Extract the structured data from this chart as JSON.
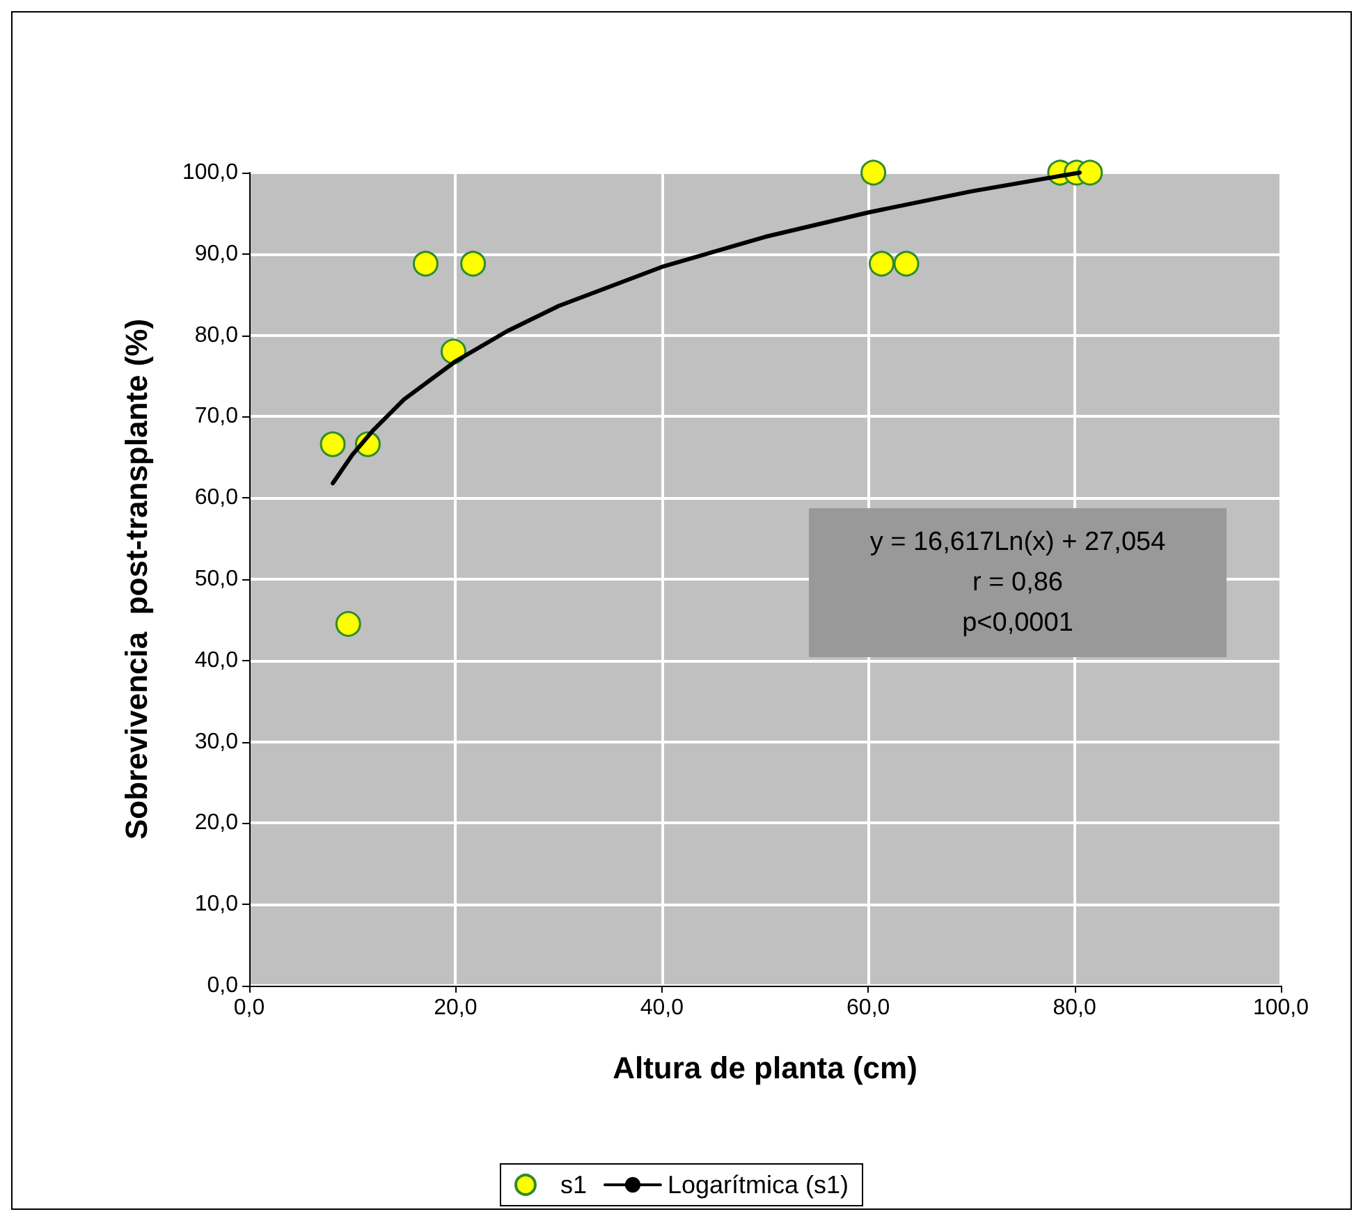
{
  "chart_data": {
    "type": "scatter",
    "xlabel": "Altura de planta (cm)",
    "ylabel": "Sobrevivencia  post-transplante (%)",
    "xlim": [
      0,
      100
    ],
    "ylim": [
      0,
      100
    ],
    "xticks": [
      {
        "value": 0,
        "label": "0,0"
      },
      {
        "value": 20,
        "label": "20,0"
      },
      {
        "value": 40,
        "label": "40,0"
      },
      {
        "value": 60,
        "label": "60,0"
      },
      {
        "value": 80,
        "label": "80,0"
      },
      {
        "value": 100,
        "label": "100,0"
      }
    ],
    "yticks": [
      {
        "value": 0,
        "label": "0,0"
      },
      {
        "value": 10,
        "label": "10,0"
      },
      {
        "value": 20,
        "label": "20,0"
      },
      {
        "value": 30,
        "label": "30,0"
      },
      {
        "value": 40,
        "label": "40,0"
      },
      {
        "value": 50,
        "label": "50,0"
      },
      {
        "value": 60,
        "label": "60,0"
      },
      {
        "value": 70,
        "label": "70,0"
      },
      {
        "value": 80,
        "label": "80,0"
      },
      {
        "value": 90,
        "label": "90,0"
      },
      {
        "value": 100,
        "label": "100,0"
      }
    ],
    "grid": true,
    "legend": "bottom",
    "marker": "circle",
    "annotations": [
      "y = 16,617Ln(x) + 27,054",
      "r = 0,86",
      "p<0,0001"
    ],
    "series": [
      {
        "name": "s1",
        "color": "#ffff00",
        "x": [
          8.1,
          9.6,
          11.5,
          17.1,
          19.8,
          21.7,
          60.5,
          61.3,
          63.7,
          78.6,
          80.2,
          81.5
        ],
        "values": [
          66.6,
          44.5,
          66.6,
          88.8,
          78.0,
          88.8,
          100,
          88.8,
          88.8,
          100,
          100,
          100
        ]
      },
      {
        "name": "Logarítmica (s1)",
        "type": "line",
        "color": "#000000",
        "line_style": "solid",
        "marker": "none",
        "x": [
          8.1,
          10,
          12,
          15,
          20,
          25,
          30,
          40,
          50,
          60,
          70,
          80.5
        ],
        "values": [
          61.8,
          65.3,
          68.3,
          72.1,
          76.8,
          80.5,
          83.6,
          88.4,
          92.1,
          95.1,
          97.7,
          100.0
        ]
      }
    ]
  }
}
